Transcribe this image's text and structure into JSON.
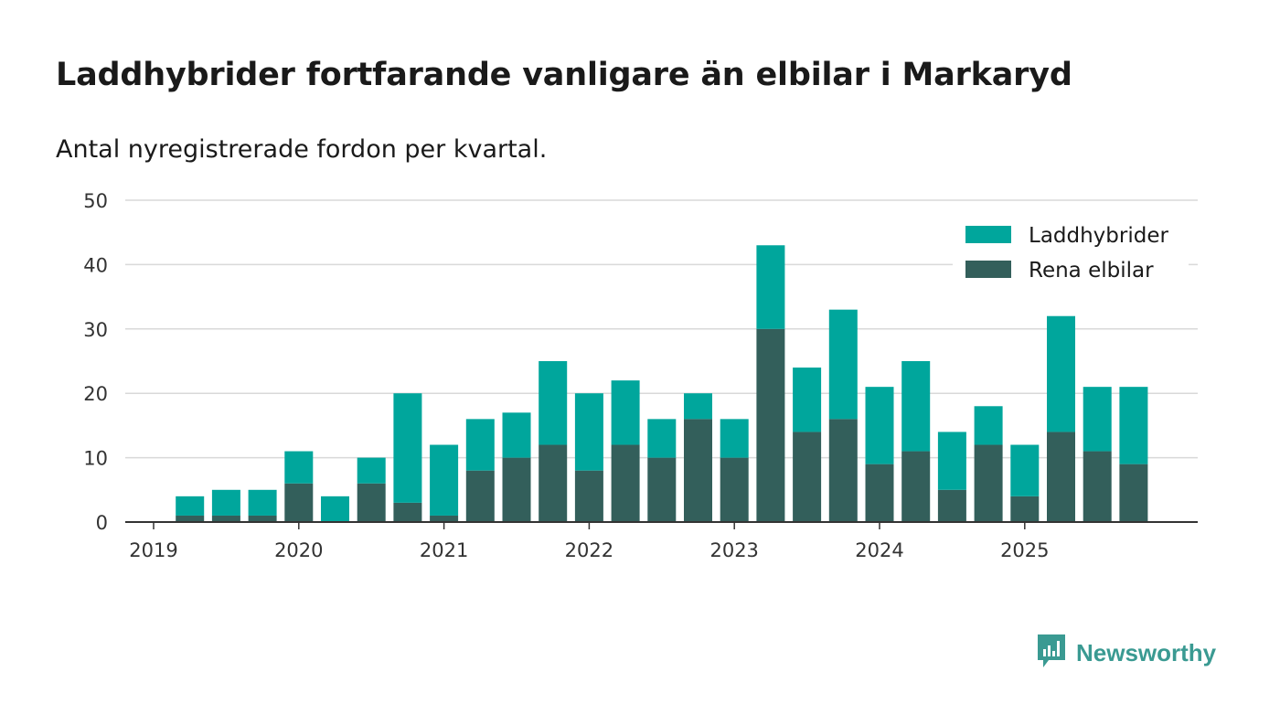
{
  "title": "Laddhybrider fortfarande vanligare än elbilar i Markaryd",
  "subtitle": "Antal nyregistrerade fordon per kvartal.",
  "brand": {
    "name": "Newsworthy",
    "icon": "newsworthy-logo-icon"
  },
  "colors": {
    "phev": "#00a69c",
    "bev": "#335f5b",
    "grid": "#d9d9d9",
    "axis": "#333333",
    "brand": "#3a9a92"
  },
  "chart_data": {
    "type": "bar",
    "stacked": true,
    "title": "Laddhybrider fortfarande vanligare än elbilar i Markaryd",
    "subtitle": "Antal nyregistrerade fordon per kvartal.",
    "ylim": [
      0,
      50
    ],
    "yticks": [
      0,
      10,
      20,
      30,
      40,
      50
    ],
    "xtick_labels": [
      "2019",
      "2020",
      "2021",
      "2022",
      "2023",
      "2024",
      "2025"
    ],
    "categories": [
      "2019 Q1",
      "2019 Q2",
      "2019 Q3",
      "2019 Q4",
      "2020 Q1",
      "2020 Q2",
      "2020 Q3",
      "2020 Q4",
      "2021 Q1",
      "2021 Q2",
      "2021 Q3",
      "2021 Q4",
      "2022 Q1",
      "2022 Q2",
      "2022 Q3",
      "2022 Q4",
      "2023 Q1",
      "2023 Q2",
      "2023 Q3",
      "2023 Q4",
      "2024 Q1",
      "2024 Q2",
      "2024 Q3",
      "2024 Q4",
      "2025 Q1",
      "2025 Q2",
      "2025 Q3",
      "2025 Q4"
    ],
    "series": [
      {
        "name": "Rena elbilar",
        "color": "#335f5b",
        "values": [
          0,
          1,
          1,
          1,
          6,
          0,
          6,
          3,
          1,
          8,
          10,
          12,
          8,
          12,
          10,
          16,
          10,
          30,
          14,
          16,
          9,
          11,
          5,
          12,
          4,
          14,
          11,
          9
        ]
      },
      {
        "name": "Laddhybrider",
        "color": "#00a69c",
        "values": [
          0,
          3,
          4,
          4,
          5,
          4,
          4,
          17,
          11,
          8,
          7,
          13,
          12,
          10,
          6,
          4,
          6,
          13,
          10,
          17,
          12,
          14,
          9,
          6,
          8,
          18,
          10,
          12
        ]
      }
    ],
    "legend": {
      "position": "top-right",
      "entries": [
        "Laddhybrider",
        "Rena elbilar"
      ]
    }
  }
}
